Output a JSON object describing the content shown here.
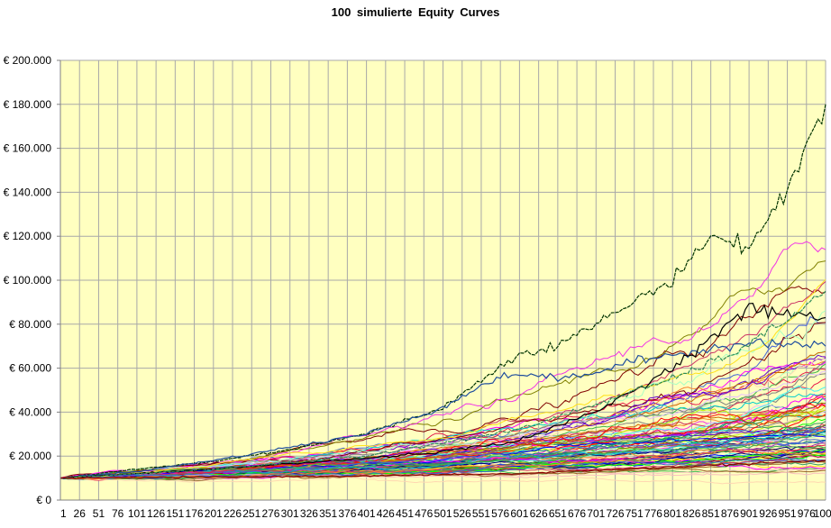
{
  "chart_data": {
    "type": "line",
    "title": "100 simulierte  Equity  Curves",
    "xlabel": "",
    "ylabel": "",
    "plot_background": "#ffffc0",
    "grid": true,
    "legend": "none",
    "ylim": [
      0,
      200000
    ],
    "y_ticks": [
      {
        "value": 0,
        "label": "€ 0"
      },
      {
        "value": 20000,
        "label": "€ 20.000"
      },
      {
        "value": 40000,
        "label": "€ 40.000"
      },
      {
        "value": 60000,
        "label": "€ 60.000"
      },
      {
        "value": 80000,
        "label": "€ 80.000"
      },
      {
        "value": 100000,
        "label": "€ 100.000"
      },
      {
        "value": 120000,
        "label": "€ 120.000"
      },
      {
        "value": 140000,
        "label": "€ 140.000"
      },
      {
        "value": 160000,
        "label": "€ 160.000"
      },
      {
        "value": 180000,
        "label": "€ 180.000"
      },
      {
        "value": 200000,
        "label": "€ 200.000"
      }
    ],
    "x_tick_labels": [
      "1",
      "26",
      "51",
      "76",
      "101",
      "126",
      "151",
      "176",
      "201",
      "226",
      "251",
      "276",
      "301",
      "326",
      "351",
      "376",
      "401",
      "426",
      "451",
      "476",
      "501",
      "526",
      "551",
      "576",
      "601",
      "626",
      "651",
      "676",
      "701",
      "726",
      "751",
      "776",
      "801",
      "826",
      "851",
      "876",
      "901",
      "926",
      "951",
      "976",
      "1001"
    ],
    "x_range": [
      1,
      1001
    ],
    "start_value": 10000,
    "series_count": 100,
    "key_series": [
      {
        "color": "#003300",
        "dashed": true,
        "points": [
          [
            1,
            10000
          ],
          [
            100,
            14000
          ],
          [
            200,
            17500
          ],
          [
            300,
            23000
          ],
          [
            400,
            30000
          ],
          [
            450,
            36000
          ],
          [
            500,
            42000
          ],
          [
            550,
            54000
          ],
          [
            600,
            67000
          ],
          [
            650,
            70000
          ],
          [
            700,
            80000
          ],
          [
            750,
            90000
          ],
          [
            800,
            100000
          ],
          [
            850,
            120000
          ],
          [
            900,
            115000
          ],
          [
            950,
            140000
          ],
          [
            1001,
            180000
          ]
        ]
      },
      {
        "color": "#1f4e9e",
        "dashed": false,
        "points": [
          [
            1,
            10000
          ],
          [
            100,
            13000
          ],
          [
            200,
            18000
          ],
          [
            300,
            24000
          ],
          [
            400,
            30000
          ],
          [
            500,
            42000
          ],
          [
            550,
            52000
          ],
          [
            600,
            58000
          ],
          [
            650,
            55000
          ],
          [
            700,
            58000
          ],
          [
            750,
            63000
          ],
          [
            800,
            66000
          ],
          [
            900,
            72000
          ],
          [
            1001,
            70000
          ]
        ]
      },
      {
        "color": "#000000",
        "dashed": false,
        "points": [
          [
            1,
            10000
          ],
          [
            100,
            12000
          ],
          [
            200,
            14000
          ],
          [
            300,
            16500
          ],
          [
            400,
            19000
          ],
          [
            500,
            22000
          ],
          [
            600,
            27000
          ],
          [
            700,
            40000
          ],
          [
            800,
            60000
          ],
          [
            900,
            87000
          ],
          [
            1001,
            83000
          ]
        ]
      },
      {
        "color": "#2e8b57",
        "dashed": true,
        "points": [
          [
            1,
            10000
          ],
          [
            200,
            14000
          ],
          [
            400,
            20000
          ],
          [
            600,
            32000
          ],
          [
            800,
            55000
          ],
          [
            900,
            70000
          ],
          [
            1001,
            95000
          ]
        ]
      },
      {
        "color": "#8b0000",
        "dashed": false,
        "points": [
          [
            1,
            10000
          ],
          [
            200,
            10500
          ],
          [
            400,
            11000
          ],
          [
            600,
            12000
          ],
          [
            800,
            15000
          ],
          [
            1001,
            18000
          ]
        ]
      }
    ]
  }
}
